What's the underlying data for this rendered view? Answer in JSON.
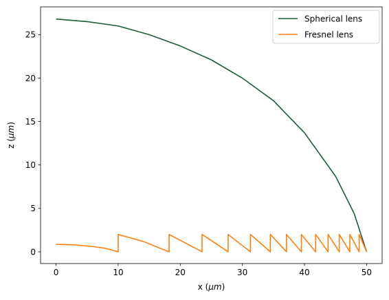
{
  "chart_data": {
    "type": "line",
    "xlabel_prefix": "x (",
    "xlabel_unit": "μm",
    "xlabel_suffix": ")",
    "ylabel_prefix": "z (",
    "ylabel_unit": "μm",
    "ylabel_suffix": ")",
    "xlim": [
      -2.5,
      52.5
    ],
    "ylim": [
      -1.35,
      28.2
    ],
    "xticks": [
      0,
      10,
      20,
      30,
      40,
      50
    ],
    "yticks": [
      0,
      5,
      10,
      15,
      20,
      25
    ],
    "grid": false,
    "legend_position": "top-right",
    "series": [
      {
        "name": "Spherical lens",
        "color": "#1b5e34",
        "points": [
          [
            0,
            26.8
          ],
          [
            5,
            26.5
          ],
          [
            10,
            26.0
          ],
          [
            15,
            25.0
          ],
          [
            20,
            23.7
          ],
          [
            25,
            22.1
          ],
          [
            30,
            20.0
          ],
          [
            35,
            17.4
          ],
          [
            40,
            13.7
          ],
          [
            45,
            8.7
          ],
          [
            48,
            4.4
          ],
          [
            50,
            0.0
          ]
        ]
      },
      {
        "name": "Fresnel lens",
        "color": "#ff7f0e",
        "points": [
          [
            0,
            0.85
          ],
          [
            3,
            0.8
          ],
          [
            6,
            0.6
          ],
          [
            8,
            0.4
          ],
          [
            10,
            0.0
          ],
          [
            10,
            2.0
          ],
          [
            14,
            1.2
          ],
          [
            18.2,
            0.0
          ],
          [
            18.2,
            2.0
          ],
          [
            23.5,
            0.0
          ],
          [
            23.5,
            2.0
          ],
          [
            27.7,
            0.0
          ],
          [
            27.7,
            2.0
          ],
          [
            31.3,
            0.0
          ],
          [
            31.3,
            2.0
          ],
          [
            34.5,
            0.0
          ],
          [
            34.5,
            2.0
          ],
          [
            37.1,
            0.0
          ],
          [
            37.1,
            2.0
          ],
          [
            39.5,
            0.0
          ],
          [
            39.5,
            2.0
          ],
          [
            41.8,
            0.0
          ],
          [
            41.8,
            2.0
          ],
          [
            43.8,
            0.0
          ],
          [
            43.8,
            2.0
          ],
          [
            45.6,
            0.0
          ],
          [
            45.6,
            2.0
          ],
          [
            47.3,
            0.0
          ],
          [
            47.3,
            2.0
          ],
          [
            48.8,
            0.0
          ],
          [
            48.8,
            2.0
          ],
          [
            50.0,
            0.0
          ]
        ]
      }
    ]
  }
}
